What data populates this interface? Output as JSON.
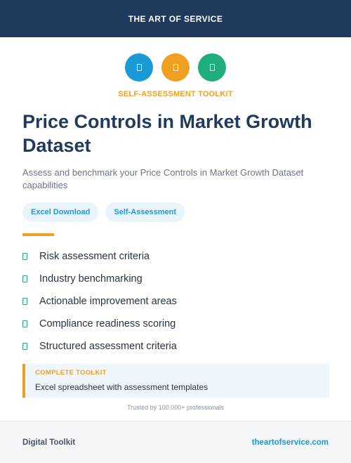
{
  "header": {
    "title": "THE ART OF SERVICE"
  },
  "icons": [
    {
      "name": "document-icon",
      "color": "#1a9ad6"
    },
    {
      "name": "document-icon",
      "color": "#f0a020"
    },
    {
      "name": "document-icon",
      "color": "#1fae7a"
    }
  ],
  "eyebrow": "SELF-ASSESSMENT TOOLKIT",
  "title": "Price Controls in Market Growth Dataset",
  "subtitle": "Assess and benchmark your Price Controls in Market Growth Dataset capabilities",
  "tags": [
    "Excel Download",
    "Self-Assessment"
  ],
  "features": [
    "Risk assessment criteria",
    "Industry benchmarking",
    "Actionable improvement areas",
    "Compliance readiness scoring",
    "Structured assessment criteria"
  ],
  "callout": {
    "label": "COMPLETE TOOLKIT",
    "text": "Excel spreadsheet with assessment templates"
  },
  "trust": "Trusted by 100,000+ professionals",
  "footer": {
    "left": "Digital Toolkit",
    "right": "theartofservice.com"
  },
  "colors": {
    "navy": "#1f3a5c",
    "accent_orange": "#f0a020",
    "accent_blue": "#1a9ad6",
    "accent_green": "#1fae7a"
  }
}
